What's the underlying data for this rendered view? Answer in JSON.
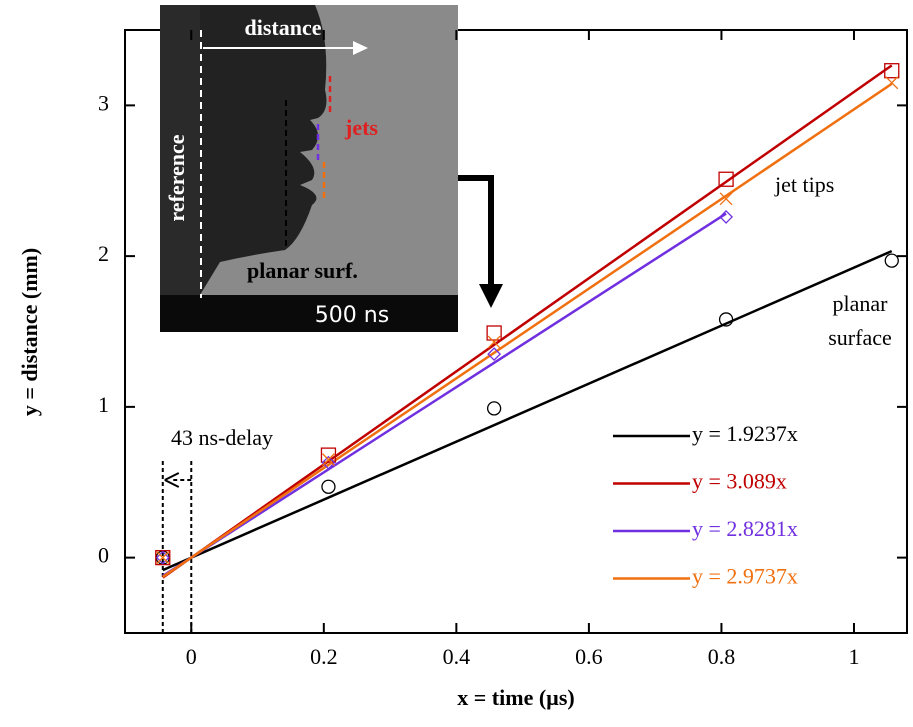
{
  "chart_data": {
    "type": "scatter",
    "x_label": "x = time (µs)",
    "y_label": "y = distance (mm)",
    "x": [
      -0.043,
      0.207,
      0.457,
      0.807,
      1.057
    ],
    "series": [
      {
        "name": "y = 1.9237x",
        "slope": 1.9237,
        "color": "#000000",
        "marker": "circle",
        "values": [
          0,
          0.47,
          0.99,
          1.58,
          1.97
        ]
      },
      {
        "name": "y = 3.089x",
        "slope": 3.089,
        "color": "#c00000",
        "marker": "square",
        "values": [
          0,
          0.68,
          1.49,
          2.51,
          3.23
        ]
      },
      {
        "name": "y = 2.8281x",
        "slope": 2.8281,
        "color": "#7030e0",
        "marker": "diamond",
        "values": [
          0,
          0.63,
          1.35,
          2.26,
          null
        ]
      },
      {
        "name": "y = 2.9737x",
        "slope": 2.9737,
        "color": "#f07010",
        "marker": "x",
        "values": [
          0,
          0.65,
          1.43,
          2.38,
          3.15
        ]
      }
    ],
    "xlim": [
      -0.1,
      1.08
    ],
    "ylim": [
      -0.5,
      3.5
    ],
    "xticks": [
      0,
      0.2,
      0.4,
      0.6,
      0.8,
      1
    ],
    "yticks": [
      0,
      1,
      2,
      3
    ],
    "annotations": {
      "delay": "43 ns-delay",
      "jet_tips": "jet tips",
      "planar_surface": [
        "planar",
        "surface"
      ]
    },
    "inset": {
      "distance": "distance",
      "reference": "reference",
      "jets": "jets",
      "planar_surf": "planar surf.",
      "time": "500 ns"
    }
  }
}
